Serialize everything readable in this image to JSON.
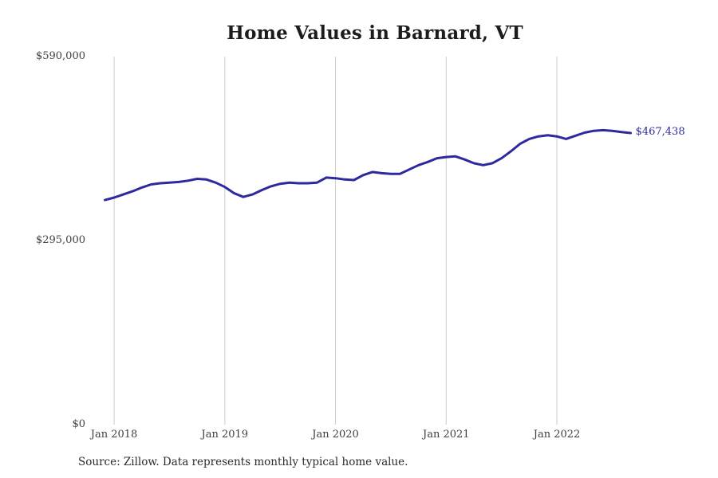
{
  "header": {
    "title": "Home Values in Barnard, VT"
  },
  "footer": {
    "source": "Source: Zillow. Data represents monthly typical home value."
  },
  "colors": {
    "line": "#2d2a9e",
    "end_label": "#2d2a9e",
    "gridline": "#cccccc",
    "title": "#1c1c1c",
    "axis_label": "#404040",
    "background": "#ffffff"
  },
  "chart_data": {
    "type": "line",
    "title": "Home Values in Barnard, VT",
    "xlabel": "",
    "ylabel": "",
    "ylim": [
      0,
      590000
    ],
    "grid": "vertical-only",
    "legend": "none",
    "end_label": "$467,438",
    "end_value": 467438,
    "y_ticks": [
      {
        "label": "$590,000",
        "value": 590000
      },
      {
        "label": "$295,000",
        "value": 295000
      },
      {
        "label": "$0",
        "value": 0
      }
    ],
    "x_ticks": [
      "Jan 2018",
      "Jan 2019",
      "Jan 2020",
      "Jan 2021",
      "Jan 2022"
    ],
    "series": [
      {
        "name": "Monthly typical home value",
        "color": "#2d2a9e",
        "x": [
          "Dec 2017",
          "Jan 2018",
          "Feb 2018",
          "Mar 2018",
          "Apr 2018",
          "May 2018",
          "Jun 2018",
          "Jul 2018",
          "Aug 2018",
          "Sep 2018",
          "Oct 2018",
          "Nov 2018",
          "Dec 2018",
          "Jan 2019",
          "Feb 2019",
          "Mar 2019",
          "Apr 2019",
          "May 2019",
          "Jun 2019",
          "Jul 2019",
          "Aug 2019",
          "Sep 2019",
          "Oct 2019",
          "Nov 2019",
          "Dec 2019",
          "Jan 2020",
          "Feb 2020",
          "Mar 2020",
          "Apr 2020",
          "May 2020",
          "Jun 2020",
          "Jul 2020",
          "Aug 2020",
          "Sep 2020",
          "Oct 2020",
          "Nov 2020",
          "Dec 2020",
          "Jan 2021",
          "Feb 2021",
          "Mar 2021",
          "Apr 2021",
          "May 2021",
          "Jun 2021",
          "Jul 2021",
          "Aug 2021",
          "Sep 2021",
          "Oct 2021",
          "Nov 2021",
          "Dec 2021",
          "Jan 2022",
          "Feb 2022",
          "Mar 2022",
          "Apr 2022",
          "May 2022",
          "Jun 2022",
          "Jul 2022",
          "Aug 2022",
          "Sep 2022"
        ],
        "values": [
          360000,
          364000,
          369000,
          374000,
          380000,
          385000,
          387000,
          388000,
          389000,
          391000,
          394000,
          393000,
          388000,
          381000,
          371000,
          365000,
          369000,
          376000,
          382000,
          386000,
          388000,
          387000,
          387000,
          388000,
          396000,
          395000,
          393000,
          392000,
          400000,
          405000,
          403000,
          402000,
          402000,
          409000,
          416000,
          421000,
          427000,
          429000,
          430000,
          425000,
          419000,
          416000,
          419000,
          427000,
          438000,
          450000,
          458000,
          462000,
          464000,
          462000,
          458000,
          463000,
          468000,
          471000,
          472000,
          471000,
          469000,
          467438
        ]
      }
    ]
  }
}
